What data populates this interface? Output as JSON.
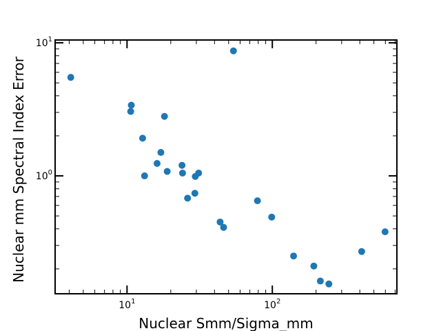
{
  "chart_data": {
    "type": "scatter",
    "title": "",
    "xlabel": "Nuclear Smm/Sigma_mm",
    "ylabel": "Nuclear mm Spectral Index Error",
    "xscale": "log",
    "yscale": "log",
    "xlim": [
      3.2,
      720
    ],
    "ylim": [
      0.13,
      10.5
    ],
    "grid": false,
    "marker_color": "#1f77b4",
    "x_ticks": [
      {
        "value": 10,
        "base": "10",
        "exp": "1"
      },
      {
        "value": 100,
        "base": "10",
        "exp": "2"
      }
    ],
    "y_ticks": [
      {
        "value": 1,
        "base": "10",
        "exp": "0"
      },
      {
        "value": 10,
        "base": "10",
        "exp": "1"
      }
    ],
    "points": [
      {
        "x": 4.1,
        "y": 5.5
      },
      {
        "x": 10.6,
        "y": 3.05
      },
      {
        "x": 10.7,
        "y": 3.4
      },
      {
        "x": 12.8,
        "y": 1.92
      },
      {
        "x": 13.2,
        "y": 1.0
      },
      {
        "x": 16.1,
        "y": 1.24
      },
      {
        "x": 17.1,
        "y": 1.5
      },
      {
        "x": 18.1,
        "y": 2.8
      },
      {
        "x": 18.9,
        "y": 1.08
      },
      {
        "x": 23.9,
        "y": 1.2
      },
      {
        "x": 24.1,
        "y": 1.05
      },
      {
        "x": 26.1,
        "y": 0.68
      },
      {
        "x": 29.3,
        "y": 0.74
      },
      {
        "x": 29.5,
        "y": 0.99
      },
      {
        "x": 31.1,
        "y": 1.05
      },
      {
        "x": 43.7,
        "y": 0.45
      },
      {
        "x": 46.2,
        "y": 0.41
      },
      {
        "x": 54.0,
        "y": 8.7
      },
      {
        "x": 79.0,
        "y": 0.65
      },
      {
        "x": 99.0,
        "y": 0.49
      },
      {
        "x": 140.0,
        "y": 0.25
      },
      {
        "x": 193.0,
        "y": 0.21
      },
      {
        "x": 214.0,
        "y": 0.162
      },
      {
        "x": 245.0,
        "y": 0.154
      },
      {
        "x": 412.0,
        "y": 0.27
      },
      {
        "x": 597.0,
        "y": 0.38
      }
    ]
  }
}
